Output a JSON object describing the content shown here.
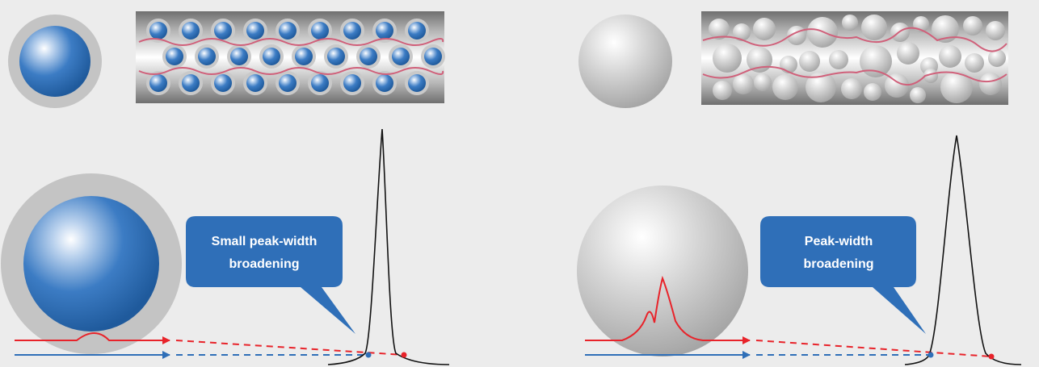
{
  "panels": [
    {
      "id": "left",
      "particle_type": "core-shell",
      "callout": {
        "line1": "Small peak-width",
        "line2": "broadening"
      },
      "colors": {
        "core": "#2f6fb8",
        "shell": "#c4c4c4",
        "peak": "#000000",
        "flow_red": "#e8232a",
        "flow_blue": "#2f6fb8"
      }
    },
    {
      "id": "right",
      "particle_type": "fully-porous",
      "callout": {
        "line1": "Peak-width",
        "line2": "broadening"
      },
      "colors": {
        "particle": "#bdbdbd",
        "peak": "#000000",
        "flow_red": "#e8232a",
        "flow_blue": "#2f6fb8"
      }
    }
  ],
  "colors": {
    "background": "#ececec",
    "callout_fill": "#2f6fb8",
    "path_line": "#d0607a"
  }
}
